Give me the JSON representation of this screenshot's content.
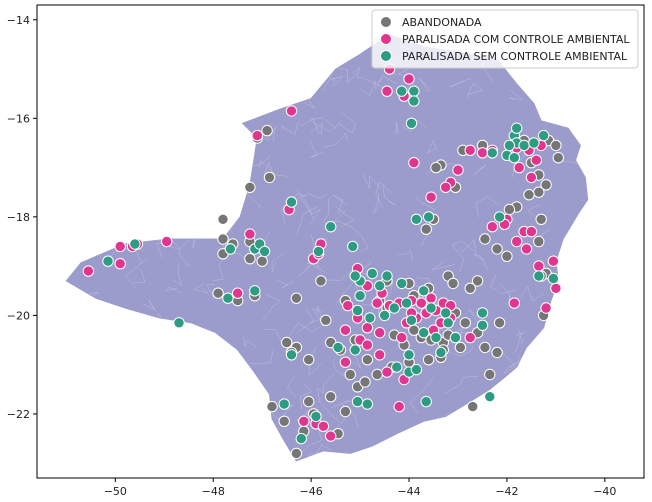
{
  "chart_data": {
    "type": "scatter",
    "title": "",
    "xlabel": "",
    "ylabel": "",
    "xlim": [
      -51.6,
      -39.2
    ],
    "ylim": [
      -23.3,
      -13.7
    ],
    "xticks": [
      -50,
      -48,
      -46,
      -44,
      -42,
      -40
    ],
    "yticks": [
      -14,
      -16,
      -18,
      -20,
      -22
    ],
    "grid": false,
    "legend_position": "top-right",
    "region": {
      "fill_color": "#9c9ccc",
      "border_color": "#e6e6f2",
      "outline": [
        [
          -50.7,
          -18.93
        ],
        [
          -49.8,
          -18.55
        ],
        [
          -48.9,
          -18.45
        ],
        [
          -47.8,
          -18.45
        ],
        [
          -47.45,
          -18.0
        ],
        [
          -47.25,
          -17.35
        ],
        [
          -47.1,
          -16.4
        ],
        [
          -47.4,
          -16.1
        ],
        [
          -46.6,
          -15.8
        ],
        [
          -46.0,
          -15.6
        ],
        [
          -45.5,
          -15.0
        ],
        [
          -45.0,
          -14.7
        ],
        [
          -44.4,
          -14.3
        ],
        [
          -43.7,
          -14.55
        ],
        [
          -43.0,
          -14.65
        ],
        [
          -42.2,
          -14.8
        ],
        [
          -41.8,
          -15.3
        ],
        [
          -41.45,
          -15.7
        ],
        [
          -41.3,
          -16.05
        ],
        [
          -40.75,
          -16.2
        ],
        [
          -40.5,
          -16.55
        ],
        [
          -40.6,
          -16.85
        ],
        [
          -40.4,
          -17.2
        ],
        [
          -40.35,
          -17.65
        ],
        [
          -40.55,
          -17.95
        ],
        [
          -40.85,
          -18.45
        ],
        [
          -41.0,
          -18.9
        ],
        [
          -40.95,
          -19.3
        ],
        [
          -41.1,
          -19.7
        ],
        [
          -41.25,
          -20.25
        ],
        [
          -41.6,
          -20.65
        ],
        [
          -41.8,
          -21.05
        ],
        [
          -42.1,
          -21.3
        ],
        [
          -42.35,
          -21.5
        ],
        [
          -42.75,
          -21.75
        ],
        [
          -43.25,
          -22.05
        ],
        [
          -43.7,
          -22.15
        ],
        [
          -44.25,
          -22.4
        ],
        [
          -44.75,
          -22.65
        ],
        [
          -45.2,
          -22.8
        ],
        [
          -45.75,
          -22.75
        ],
        [
          -46.3,
          -22.95
        ],
        [
          -46.55,
          -22.55
        ],
        [
          -46.8,
          -22.1
        ],
        [
          -46.85,
          -21.6
        ],
        [
          -47.2,
          -21.1
        ],
        [
          -47.5,
          -20.7
        ],
        [
          -47.95,
          -20.35
        ],
        [
          -48.45,
          -20.15
        ],
        [
          -49.1,
          -20.05
        ],
        [
          -49.8,
          -19.85
        ],
        [
          -50.4,
          -19.65
        ],
        [
          -51.0,
          -19.3
        ]
      ]
    },
    "series": [
      {
        "name": "ABANDONADA",
        "color": "#767676",
        "points": [
          [
            -46.9,
            -16.25
          ],
          [
            -47.1,
            -16.4
          ],
          [
            -47.25,
            -17.4
          ],
          [
            -46.85,
            -17.2
          ],
          [
            -47.8,
            -18.05
          ],
          [
            -47.8,
            -18.45
          ],
          [
            -47.6,
            -18.55
          ],
          [
            -47.25,
            -18.5
          ],
          [
            -47.25,
            -18.85
          ],
          [
            -47.0,
            -18.9
          ],
          [
            -47.15,
            -19.6
          ],
          [
            -47.8,
            -18.75
          ],
          [
            -47.5,
            -19.7
          ],
          [
            -47.9,
            -19.55
          ],
          [
            -46.3,
            -19.65
          ],
          [
            -45.8,
            -19.3
          ],
          [
            -46.5,
            -20.55
          ],
          [
            -46.3,
            -20.65
          ],
          [
            -46.4,
            -20.75
          ],
          [
            -46.05,
            -20.9
          ],
          [
            -45.6,
            -20.55
          ],
          [
            -45.4,
            -20.7
          ],
          [
            -45.1,
            -20.5
          ],
          [
            -44.85,
            -20.9
          ],
          [
            -44.65,
            -21.2
          ],
          [
            -44.35,
            -21.05
          ],
          [
            -44.0,
            -20.95
          ],
          [
            -44.1,
            -20.6
          ],
          [
            -44.3,
            -20.4
          ],
          [
            -43.9,
            -20.3
          ],
          [
            -43.75,
            -20.45
          ],
          [
            -43.55,
            -20.5
          ],
          [
            -43.3,
            -20.55
          ],
          [
            -43.2,
            -20.4
          ],
          [
            -43.9,
            -19.6
          ],
          [
            -44.0,
            -19.35
          ],
          [
            -44.45,
            -19.3
          ],
          [
            -43.6,
            -19.45
          ],
          [
            -43.2,
            -19.2
          ],
          [
            -43.1,
            -19.35
          ],
          [
            -42.75,
            -19.45
          ],
          [
            -42.6,
            -19.3
          ],
          [
            -43.5,
            -18.05
          ],
          [
            -43.65,
            -18.25
          ],
          [
            -43.35,
            -16.95
          ],
          [
            -43.45,
            -17.0
          ],
          [
            -42.9,
            -16.65
          ],
          [
            -42.5,
            -16.55
          ],
          [
            -41.65,
            -16.45
          ],
          [
            -41.15,
            -16.45
          ],
          [
            -41.0,
            -16.55
          ],
          [
            -40.95,
            -16.8
          ],
          [
            -41.5,
            -16.9
          ],
          [
            -41.35,
            -17.15
          ],
          [
            -41.2,
            -17.35
          ],
          [
            -41.35,
            -17.5
          ],
          [
            -41.55,
            -17.55
          ],
          [
            -41.3,
            -18.05
          ],
          [
            -41.65,
            -18.3
          ],
          [
            -41.35,
            -18.5
          ],
          [
            -41.2,
            -19.15
          ],
          [
            -41.3,
            -19.2
          ],
          [
            -41.25,
            -20.0
          ],
          [
            -42.0,
            -18.8
          ],
          [
            -42.15,
            -20.15
          ],
          [
            -42.2,
            -20.75
          ],
          [
            -42.45,
            -20.65
          ],
          [
            -42.35,
            -21.2
          ],
          [
            -42.7,
            -21.85
          ],
          [
            -43.35,
            -20.85
          ],
          [
            -43.6,
            -20.9
          ],
          [
            -43.3,
            -20.7
          ],
          [
            -45.2,
            -21.2
          ],
          [
            -45.05,
            -21.45
          ],
          [
            -44.9,
            -21.35
          ],
          [
            -45.6,
            -21.65
          ],
          [
            -45.3,
            -21.95
          ],
          [
            -45.45,
            -22.4
          ],
          [
            -46.15,
            -22.35
          ],
          [
            -46.05,
            -21.75
          ],
          [
            -46.8,
            -21.85
          ],
          [
            -46.55,
            -22.15
          ],
          [
            -46.3,
            -22.8
          ],
          [
            -45.95,
            -22.0
          ],
          [
            -45.1,
            -19.2
          ],
          [
            -45.3,
            -19.7
          ],
          [
            -45.7,
            -20.1
          ],
          [
            -44.6,
            -19.7
          ],
          [
            -44.45,
            -19.85
          ],
          [
            -43.05,
            -19.95
          ],
          [
            -42.85,
            -20.15
          ],
          [
            -42.95,
            -20.65
          ],
          [
            -42.6,
            -20.35
          ],
          [
            -42.2,
            -18.65
          ],
          [
            -42.45,
            -18.45
          ],
          [
            -41.8,
            -17.8
          ],
          [
            -41.95,
            -17.85
          ],
          [
            -43.05,
            -17.4
          ]
        ]
      },
      {
        "name": "PARALISADA COM CONTROLE AMBIENTAL",
        "color": "#e0368f",
        "points": [
          [
            -47.1,
            -16.35
          ],
          [
            -46.4,
            -15.85
          ],
          [
            -44.4,
            -15.0
          ],
          [
            -44.0,
            -15.2
          ],
          [
            -44.45,
            -15.45
          ],
          [
            -44.1,
            -15.55
          ],
          [
            -47.25,
            -18.35
          ],
          [
            -47.5,
            -19.55
          ],
          [
            -47.65,
            -18.65
          ],
          [
            -49.9,
            -18.6
          ],
          [
            -49.65,
            -18.6
          ],
          [
            -49.55,
            -18.55
          ],
          [
            -48.95,
            -18.5
          ],
          [
            -50.55,
            -19.1
          ],
          [
            -49.9,
            -18.95
          ],
          [
            -46.4,
            -17.7
          ],
          [
            -46.45,
            -17.85
          ],
          [
            -45.95,
            -18.85
          ],
          [
            -45.8,
            -18.55
          ],
          [
            -45.05,
            -19.05
          ],
          [
            -44.85,
            -19.4
          ],
          [
            -44.55,
            -19.55
          ],
          [
            -44.65,
            -19.75
          ],
          [
            -44.4,
            -19.8
          ],
          [
            -44.2,
            -19.75
          ],
          [
            -43.95,
            -19.7
          ],
          [
            -43.75,
            -19.75
          ],
          [
            -43.55,
            -19.65
          ],
          [
            -43.3,
            -19.75
          ],
          [
            -43.15,
            -19.8
          ],
          [
            -43.45,
            -19.9
          ],
          [
            -43.65,
            -19.95
          ],
          [
            -43.85,
            -20.05
          ],
          [
            -44.05,
            -20.15
          ],
          [
            -43.35,
            -20.15
          ],
          [
            -43.15,
            -20.05
          ],
          [
            -43.5,
            -20.3
          ],
          [
            -45.25,
            -19.8
          ],
          [
            -45.05,
            -20.05
          ],
          [
            -44.85,
            -20.25
          ],
          [
            -45.0,
            -20.5
          ],
          [
            -44.6,
            -20.35
          ],
          [
            -44.15,
            -20.45
          ],
          [
            -44.6,
            -20.8
          ],
          [
            -44.85,
            -20.6
          ],
          [
            -45.3,
            -20.95
          ],
          [
            -44.1,
            -21.3
          ],
          [
            -44.2,
            -21.85
          ],
          [
            -44.45,
            -21.15
          ],
          [
            -45.9,
            -22.2
          ],
          [
            -45.6,
            -22.45
          ],
          [
            -46.15,
            -22.15
          ],
          [
            -45.75,
            -22.25
          ],
          [
            -43.9,
            -16.9
          ],
          [
            -43.0,
            -17.05
          ],
          [
            -43.15,
            -17.3
          ],
          [
            -42.75,
            -16.65
          ],
          [
            -42.5,
            -16.7
          ],
          [
            -42.3,
            -16.65
          ],
          [
            -41.8,
            -16.6
          ],
          [
            -41.55,
            -16.65
          ],
          [
            -41.3,
            -16.55
          ],
          [
            -41.4,
            -16.85
          ],
          [
            -41.5,
            -17.2
          ],
          [
            -41.75,
            -17.0
          ],
          [
            -42.0,
            -18.05
          ],
          [
            -42.05,
            -18.15
          ],
          [
            -42.3,
            -18.2
          ],
          [
            -41.65,
            -18.3
          ],
          [
            -41.5,
            -18.3
          ],
          [
            -41.35,
            -19.0
          ],
          [
            -41.05,
            -18.9
          ],
          [
            -41.6,
            -18.65
          ],
          [
            -41.85,
            -19.75
          ],
          [
            -41.2,
            -19.85
          ],
          [
            -41.0,
            -19.45
          ],
          [
            -41.8,
            -18.5
          ],
          [
            -43.25,
            -17.4
          ],
          [
            -43.55,
            -17.6
          ],
          [
            -43.95,
            -19.95
          ],
          [
            -42.75,
            -20.45
          ],
          [
            -45.3,
            -20.3
          ],
          [
            -45.85,
            -18.75
          ]
        ]
      },
      {
        "name": "PARALISADA SEM CONTROLE AMBIENTAL",
        "color": "#2e9c82",
        "points": [
          [
            -44.15,
            -15.45
          ],
          [
            -43.9,
            -15.45
          ],
          [
            -43.9,
            -15.65
          ],
          [
            -43.95,
            -16.1
          ],
          [
            -41.85,
            -16.35
          ],
          [
            -41.8,
            -16.5
          ],
          [
            -41.65,
            -16.55
          ],
          [
            -42.0,
            -16.75
          ],
          [
            -41.85,
            -16.8
          ],
          [
            -46.4,
            -17.7
          ],
          [
            -47.15,
            -18.65
          ],
          [
            -47.05,
            -18.55
          ],
          [
            -46.95,
            -18.7
          ],
          [
            -47.65,
            -18.65
          ],
          [
            -49.6,
            -18.55
          ],
          [
            -50.15,
            -18.9
          ],
          [
            -48.7,
            -20.15
          ],
          [
            -45.6,
            -18.2
          ],
          [
            -45.85,
            -18.7
          ],
          [
            -45.15,
            -18.6
          ],
          [
            -45.0,
            -19.3
          ],
          [
            -45.0,
            -19.6
          ],
          [
            -44.75,
            -19.15
          ],
          [
            -44.6,
            -19.4
          ],
          [
            -44.8,
            -20.05
          ],
          [
            -45.05,
            -19.9
          ],
          [
            -44.5,
            -20.0
          ],
          [
            -44.3,
            -19.85
          ],
          [
            -44.05,
            -19.75
          ],
          [
            -44.15,
            -19.35
          ],
          [
            -43.7,
            -19.5
          ],
          [
            -43.55,
            -19.85
          ],
          [
            -43.25,
            -19.95
          ],
          [
            -43.2,
            -20.15
          ],
          [
            -43.7,
            -20.35
          ],
          [
            -43.45,
            -20.45
          ],
          [
            -43.05,
            -20.45
          ],
          [
            -43.35,
            -20.75
          ],
          [
            -44.0,
            -20.8
          ],
          [
            -44.25,
            -21.05
          ],
          [
            -45.1,
            -20.7
          ],
          [
            -45.45,
            -20.65
          ],
          [
            -46.4,
            -20.8
          ],
          [
            -45.05,
            -21.75
          ],
          [
            -46.2,
            -22.5
          ],
          [
            -46.55,
            -21.8
          ],
          [
            -45.9,
            -22.05
          ],
          [
            -43.85,
            -18.05
          ],
          [
            -43.6,
            -18.0
          ],
          [
            -41.8,
            -16.2
          ],
          [
            -42.3,
            -16.7
          ],
          [
            -41.95,
            -16.55
          ],
          [
            -41.45,
            -16.5
          ],
          [
            -41.25,
            -16.35
          ],
          [
            -42.15,
            -18.0
          ],
          [
            -41.05,
            -19.25
          ],
          [
            -41.35,
            -19.2
          ],
          [
            -42.5,
            -19.95
          ],
          [
            -42.5,
            -20.2
          ],
          [
            -42.35,
            -21.65
          ],
          [
            -43.65,
            -21.75
          ],
          [
            -44.0,
            -21.15
          ],
          [
            -43.85,
            -21.1
          ],
          [
            -44.85,
            -21.8
          ],
          [
            -47.7,
            -19.65
          ],
          [
            -47.15,
            -19.5
          ],
          [
            -45.1,
            -19.2
          ],
          [
            -44.45,
            -19.2
          ],
          [
            -43.95,
            -20.1
          ]
        ]
      }
    ]
  }
}
